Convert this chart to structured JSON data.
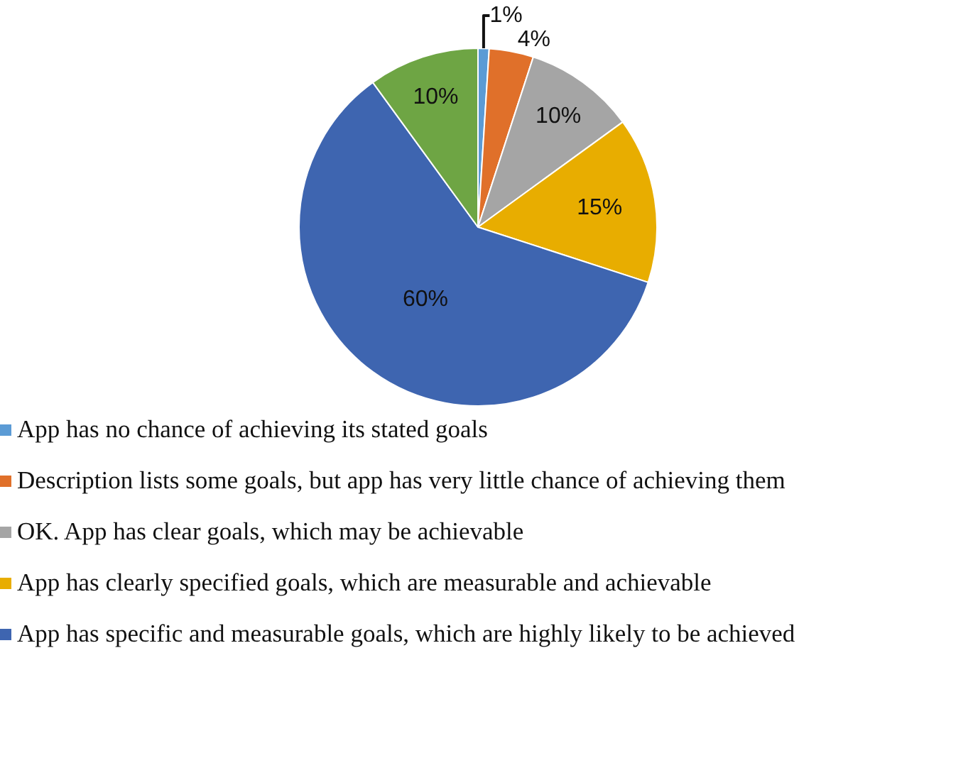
{
  "chart_data": {
    "type": "pie",
    "categories": [
      "App has no chance of achieving its stated goals",
      "Description lists some goals, but app has very little chance of achieving them",
      "OK. App has clear goals, which may be achievable",
      "App has clearly specified goals, which are measurable and achievable",
      "App has specific and measurable goals, which are highly likely to be achieved",
      null
    ],
    "values": [
      1,
      4,
      10,
      15,
      60,
      10
    ],
    "colors": [
      "#5b9bd5",
      "#e0702a",
      "#a5a5a5",
      "#e8ad00",
      "#3e65b0",
      "#6ea544"
    ],
    "value_labels": [
      "1%",
      "4%",
      "10%",
      "15%",
      "60%",
      "10%"
    ],
    "legend": "bottom"
  }
}
